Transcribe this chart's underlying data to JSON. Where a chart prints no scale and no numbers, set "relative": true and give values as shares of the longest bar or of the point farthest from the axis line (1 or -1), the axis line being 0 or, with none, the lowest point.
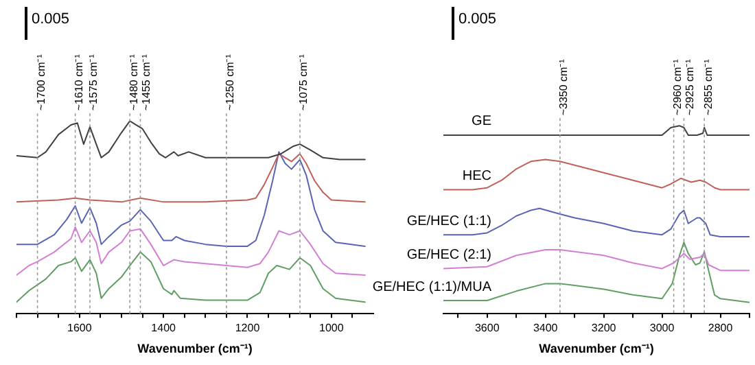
{
  "chart_data": [
    {
      "type": "line",
      "relative": true,
      "xlabel": "Wavenumber (cm⁻¹)",
      "xlim": [
        1750,
        900
      ],
      "marker": "none",
      "line_style": "solid",
      "grid": false,
      "legend": false,
      "xticks": [
        {
          "value": 1750,
          "label": null
        },
        {
          "value": 1700,
          "label": null
        },
        {
          "value": 1650,
          "label": null
        },
        1600,
        {
          "value": 1550,
          "label": null
        },
        {
          "value": 1500,
          "label": null
        },
        {
          "value": 1450,
          "label": null
        },
        1400,
        {
          "value": 1350,
          "label": null
        },
        {
          "value": 1300,
          "label": null
        },
        {
          "value": 1250,
          "label": null
        },
        1200,
        {
          "value": 1150,
          "label": null
        },
        {
          "value": 1100,
          "label": null
        },
        {
          "value": 1050,
          "label": null
        },
        1000,
        {
          "value": 950,
          "label": null
        }
      ],
      "annotations": [
        "0.005"
      ],
      "ref_lines": [
        {
          "axis": "x",
          "value": 1700,
          "label": "~1700 cm⁻¹"
        },
        {
          "axis": "x",
          "value": 1610,
          "label": "~1610 cm⁻¹"
        },
        {
          "axis": "x",
          "value": 1575,
          "label": "~1575 cm⁻¹"
        },
        {
          "axis": "x",
          "value": 1480,
          "label": "~1480 cm⁻¹"
        },
        {
          "axis": "x",
          "value": 1455,
          "label": "~1455 cm⁻¹"
        },
        {
          "axis": "x",
          "value": 1250,
          "label": "~1250 cm⁻¹"
        },
        {
          "axis": "x",
          "value": 1075,
          "label": "~1075 cm⁻¹"
        }
      ],
      "series": [
        {
          "color": "#404040",
          "x": [
            1750,
            1700,
            1680,
            1650,
            1620,
            1605,
            1590,
            1575,
            1560,
            1548,
            1530,
            1500,
            1480,
            1465,
            1450,
            1430,
            1410,
            1395,
            1375,
            1365,
            1340,
            1300,
            1250,
            1200,
            1150,
            1120,
            1090,
            1075,
            1050,
            1020,
            980,
            920
          ],
          "values": [
            0.82,
            0.81,
            0.84,
            0.93,
            0.98,
            0.99,
            0.88,
            0.97,
            0.88,
            0.81,
            0.84,
            0.94,
            1,
            0.98,
            0.96,
            0.89,
            0.83,
            0.81,
            0.84,
            0.82,
            0.84,
            0.81,
            0.81,
            0.81,
            0.81,
            0.83,
            0.87,
            0.88,
            0.85,
            0.81,
            0.8,
            0.8
          ]
        },
        {
          "color": "#c0605a",
          "x": [
            1750,
            1650,
            1610,
            1575,
            1500,
            1455,
            1400,
            1300,
            1200,
            1180,
            1160,
            1140,
            1125,
            1110,
            1095,
            1080,
            1075,
            1060,
            1040,
            1020,
            1000,
            920
          ],
          "values": [
            0.58,
            0.59,
            0.6,
            0.59,
            0.58,
            0.6,
            0.58,
            0.58,
            0.59,
            0.6,
            0.67,
            0.76,
            0.83,
            0.81,
            0.79,
            0.82,
            0.83,
            0.78,
            0.69,
            0.63,
            0.59,
            0.58
          ]
        },
        {
          "color": "#5a64b4",
          "x": [
            1750,
            1700,
            1660,
            1630,
            1610,
            1595,
            1575,
            1560,
            1548,
            1530,
            1500,
            1480,
            1455,
            1430,
            1400,
            1380,
            1370,
            1350,
            1300,
            1250,
            1200,
            1180,
            1160,
            1140,
            1125,
            1110,
            1095,
            1075,
            1060,
            1040,
            1020,
            990,
            920
          ],
          "values": [
            0.36,
            0.36,
            0.41,
            0.49,
            0.56,
            0.47,
            0.55,
            0.47,
            0.36,
            0.4,
            0.46,
            0.48,
            0.54,
            0.48,
            0.38,
            0.38,
            0.4,
            0.38,
            0.36,
            0.35,
            0.35,
            0.38,
            0.51,
            0.69,
            0.84,
            0.78,
            0.75,
            0.8,
            0.72,
            0.54,
            0.43,
            0.37,
            0.35
          ]
        },
        {
          "color": "#d47ed4",
          "x": [
            1750,
            1720,
            1700,
            1660,
            1620,
            1610,
            1595,
            1575,
            1560,
            1548,
            1530,
            1500,
            1480,
            1455,
            1430,
            1400,
            1375,
            1350,
            1300,
            1250,
            1200,
            1170,
            1150,
            1125,
            1100,
            1075,
            1050,
            1020,
            990,
            920
          ],
          "values": [
            0.2,
            0.25,
            0.27,
            0.32,
            0.39,
            0.45,
            0.37,
            0.43,
            0.37,
            0.26,
            0.32,
            0.37,
            0.43,
            0.44,
            0.36,
            0.25,
            0.28,
            0.27,
            0.26,
            0.25,
            0.24,
            0.26,
            0.32,
            0.43,
            0.41,
            0.43,
            0.36,
            0.26,
            0.21,
            0.2
          ]
        },
        {
          "color": "#5f9e62",
          "x": [
            1750,
            1720,
            1700,
            1680,
            1650,
            1620,
            1610,
            1595,
            1575,
            1560,
            1548,
            1530,
            1500,
            1480,
            1455,
            1430,
            1400,
            1380,
            1375,
            1360,
            1300,
            1200,
            1170,
            1150,
            1130,
            1100,
            1075,
            1050,
            1020,
            990,
            920
          ],
          "values": [
            0.06,
            0.12,
            0.15,
            0.18,
            0.25,
            0.27,
            0.29,
            0.22,
            0.28,
            0.21,
            0.08,
            0.13,
            0.19,
            0.25,
            0.32,
            0.27,
            0.13,
            0.1,
            0.12,
            0.08,
            0.07,
            0.07,
            0.11,
            0.21,
            0.25,
            0.23,
            0.29,
            0.25,
            0.13,
            0.08,
            0.06
          ]
        }
      ]
    },
    {
      "type": "line",
      "relative": true,
      "xlabel": "Wavenumber (cm⁻¹)",
      "xlim": [
        3750,
        2700
      ],
      "marker": "none",
      "line_style": "solid",
      "grid": false,
      "legend": false,
      "xticks": [
        {
          "value": 3700,
          "label": null
        },
        3600,
        {
          "value": 3500,
          "label": null
        },
        3400,
        {
          "value": 3300,
          "label": null
        },
        3200,
        {
          "value": 3100,
          "label": null
        },
        3000,
        {
          "value": 2900,
          "label": null
        },
        2800,
        {
          "value": 2700,
          "label": null
        }
      ],
      "annotations": [
        "0.005"
      ],
      "ref_lines": [
        {
          "axis": "x",
          "value": 3350,
          "label": "~3350 cm⁻¹"
        },
        {
          "axis": "x",
          "value": 2960,
          "label": "~2960 cm⁻¹"
        },
        {
          "axis": "x",
          "value": 2925,
          "label": "~2925 cm⁻¹"
        },
        {
          "axis": "x",
          "value": 2855,
          "label": "~2855 cm⁻¹"
        }
      ],
      "series": [
        {
          "name": "GE",
          "color": "#404040",
          "x": [
            3750,
            3600,
            3400,
            3200,
            3050,
            3000,
            2970,
            2940,
            2925,
            2910,
            2880,
            2860,
            2855,
            2845,
            2800,
            2700
          ],
          "values": [
            0.95,
            0.95,
            0.95,
            0.95,
            0.95,
            0.95,
            0.99,
            1,
            0.99,
            0.95,
            0.95,
            0.96,
            0.99,
            0.95,
            0.95,
            0.95
          ]
        },
        {
          "name": "HEC",
          "color": "#c0605a",
          "x": [
            3750,
            3650,
            3600,
            3550,
            3500,
            3450,
            3400,
            3350,
            3300,
            3200,
            3100,
            3000,
            2970,
            2935,
            2900,
            2870,
            2850,
            2820,
            2800,
            2700
          ],
          "values": [
            0.66,
            0.66,
            0.67,
            0.71,
            0.77,
            0.81,
            0.82,
            0.81,
            0.79,
            0.75,
            0.71,
            0.67,
            0.69,
            0.72,
            0.7,
            0.71,
            0.7,
            0.67,
            0.66,
            0.66
          ]
        },
        {
          "name": "GE/HEC (1:1)",
          "color": "#5a64b4",
          "x": [
            3750,
            3650,
            3600,
            3550,
            3500,
            3450,
            3420,
            3350,
            3300,
            3200,
            3100,
            3000,
            2970,
            2940,
            2925,
            2910,
            2880,
            2870,
            2850,
            2835,
            2800,
            2700
          ],
          "values": [
            0.42,
            0.42,
            0.43,
            0.47,
            0.52,
            0.55,
            0.56,
            0.53,
            0.51,
            0.48,
            0.44,
            0.42,
            0.45,
            0.53,
            0.55,
            0.48,
            0.51,
            0.51,
            0.48,
            0.42,
            0.41,
            0.41
          ]
        },
        {
          "name": "GE/HEC (2:1)",
          "color": "#d47ed4",
          "x": [
            3750,
            3600,
            3500,
            3400,
            3350,
            3300,
            3200,
            3100,
            3000,
            2960,
            2925,
            2905,
            2870,
            2855,
            2840,
            2800,
            2700
          ],
          "values": [
            0.24,
            0.25,
            0.31,
            0.34,
            0.34,
            0.33,
            0.31,
            0.27,
            0.24,
            0.27,
            0.32,
            0.29,
            0.3,
            0.32,
            0.26,
            0.23,
            0.23
          ]
        },
        {
          "name": "GE/HEC (1:1)/MUA",
          "color": "#5f9e62",
          "x": [
            3750,
            3600,
            3500,
            3400,
            3350,
            3300,
            3200,
            3100,
            3000,
            2965,
            2940,
            2925,
            2910,
            2885,
            2870,
            2855,
            2845,
            2820,
            2800,
            2700
          ],
          "values": [
            0.07,
            0.07,
            0.12,
            0.16,
            0.16,
            0.15,
            0.13,
            0.1,
            0.08,
            0.16,
            0.31,
            0.38,
            0.32,
            0.26,
            0.27,
            0.33,
            0.26,
            0.1,
            0.08,
            0.06
          ]
        }
      ]
    }
  ]
}
